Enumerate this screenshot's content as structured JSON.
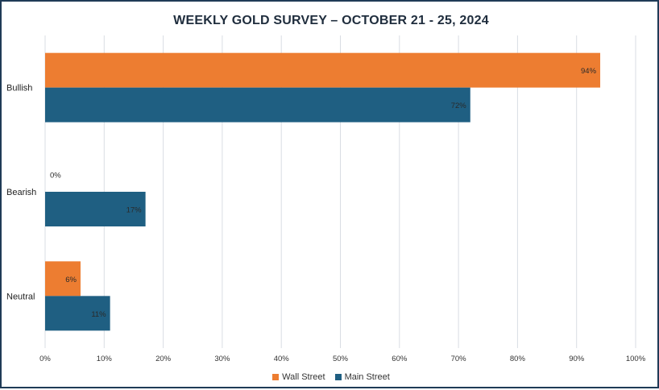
{
  "chart_data": {
    "type": "bar",
    "orientation": "horizontal",
    "title": "WEEKLY GOLD SURVEY – OCTOBER 21 - 25, 2024",
    "categories": [
      "Bullish",
      "Bearish",
      "Neutral"
    ],
    "series": [
      {
        "name": "Wall Street",
        "color": "#ed7d31",
        "values": [
          94,
          0,
          6
        ],
        "labels": [
          "94%",
          "0%",
          "6%"
        ]
      },
      {
        "name": "Main Street",
        "color": "#1f5f82",
        "values": [
          72,
          17,
          11
        ],
        "labels": [
          "72%",
          "17%",
          "11%"
        ]
      }
    ],
    "xlim": [
      0,
      100
    ],
    "xticks": [
      "0%",
      "10%",
      "20%",
      "30%",
      "40%",
      "50%",
      "60%",
      "70%",
      "80%",
      "90%",
      "100%"
    ],
    "grid": true,
    "legend_position": "bottom"
  }
}
